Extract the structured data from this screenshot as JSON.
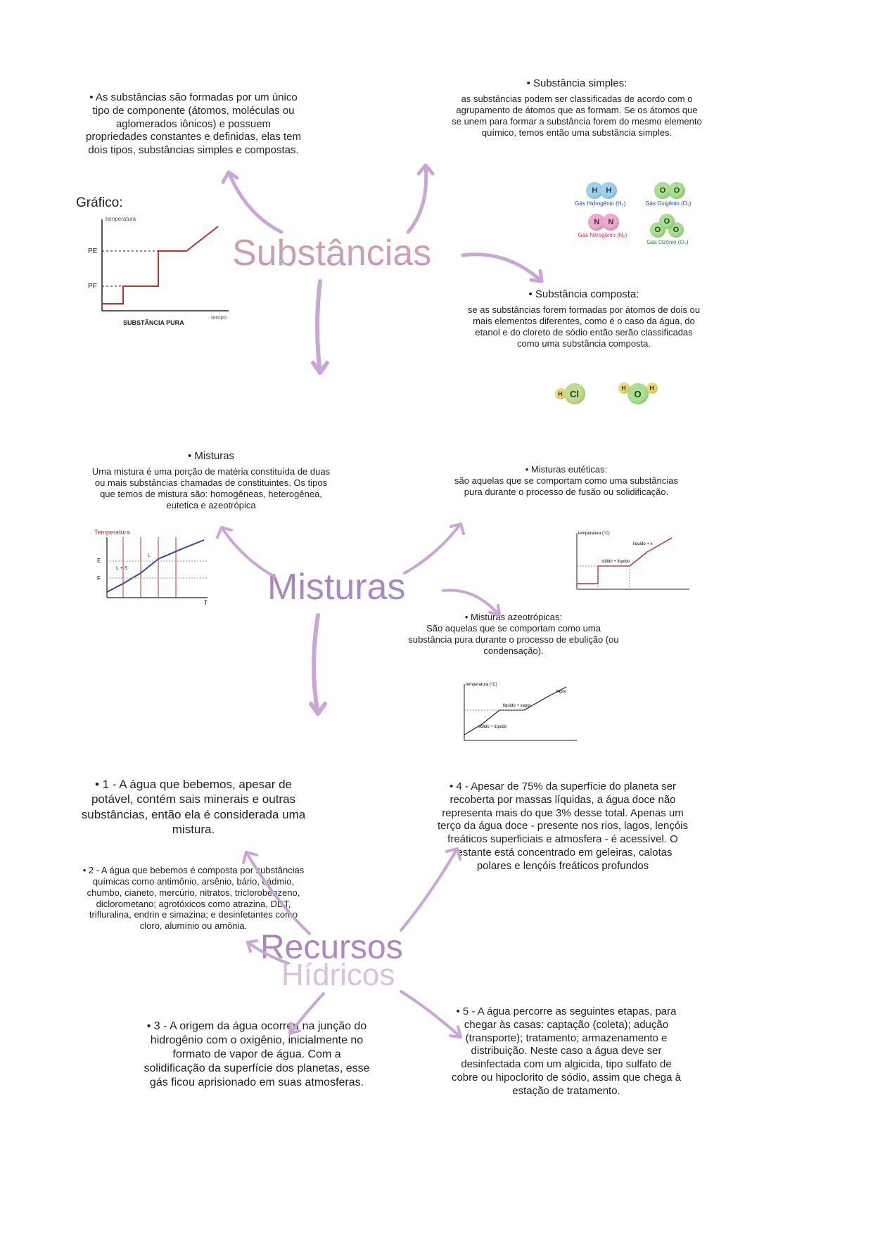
{
  "colors": {
    "arrow": "#c9a6d6",
    "chart_axes": "#222222",
    "chart_line_red": "#c23030",
    "chart_line_blue": "#2a4aa0",
    "chart_grid": "#b8b8b8",
    "atom_h": "#9ed3f0",
    "atom_o": "#a7e28f",
    "atom_n": "#f2a8cf",
    "atom_cl": "#bfde8e",
    "atom_h_yellow": "#f5df6e",
    "caption_blue": "#2244cc",
    "caption_red": "#cc3344",
    "caption_green": "#2a8a3a"
  },
  "substancias": {
    "heading": "Substâncias",
    "left": {
      "bullet": "• As substâncias são formadas por um único tipo de componente (átomos, moléculas ou aglomerados iônicos) e possuem propriedades constantes e definidas, elas tem dois tipos, substâncias simples e compostas.",
      "grafico_label": "Gráfico:",
      "chart": {
        "y_label": "temperatura",
        "x_label": "tempo",
        "pe_label": "PE",
        "pf_label": "PF",
        "caption": "SUBSTÂNCIA PURA"
      }
    },
    "simples": {
      "title": "• Substância simples:",
      "body": "as substâncias podem ser classificadas de acordo com o agrupamento de átomos que as formam. Se os átomos que se unem para formar a substância forem do mesmo elemento químico, temos então uma substância simples.",
      "atoms": [
        {
          "letters": [
            "H",
            "H"
          ],
          "color_key": "atom_h",
          "caption": "Gás Hidrogênio (H₂)",
          "cap_color": "caption_blue"
        },
        {
          "letters": [
            "O",
            "O"
          ],
          "color_key": "atom_o",
          "caption": "Gás Oxigênio (O₂)",
          "cap_color": "caption_blue"
        },
        {
          "letters": [
            "N",
            "N"
          ],
          "color_key": "atom_n",
          "caption": "Gás Nitrogênio (N₂)",
          "cap_color": "caption_red"
        },
        {
          "letters": [
            "O",
            "O",
            "O"
          ],
          "color_key": "atom_o",
          "caption": "Gás Ozônio (O₃)",
          "cap_color": "caption_green",
          "tri": true
        }
      ]
    },
    "composta": {
      "title": "• Substância composta:",
      "body": "se as substâncias forem formadas por átomos de dois ou mais elementos diferentes, como é o caso da água, do etanol e do cloreto de sódio então serão classificadas como uma substância composta.",
      "mol1": {
        "letters": [
          "H",
          "Cl"
        ],
        "colors": [
          "atom_h_yellow",
          "atom_cl"
        ]
      },
      "mol2": {
        "letters": [
          "H",
          "O",
          "H"
        ],
        "colors": [
          "atom_h_yellow",
          "atom_o",
          "atom_h_yellow"
        ]
      }
    }
  },
  "misturas": {
    "heading": "Misturas",
    "left": {
      "title": "• Misturas",
      "body": "Uma mistura é uma porção de matéria constituída de duas ou mais substâncias chamadas de constituintes. Os tipos que temos de mistura são: homogêneas, heterogênea, eutetica e azeotrópica",
      "chart_label": "Temperatura"
    },
    "euteticas": {
      "title": "• Misturas eutéticas:",
      "body": "são aquelas que se comportam como uma substâncias pura durante o processo de fusão ou solidificação."
    },
    "azeotropicas": {
      "title": "• Misturas azeotrópicas:",
      "body": "São aquelas que se comportam como uma substância pura durante o processo de ebulição (ou condensação)."
    }
  },
  "recursos": {
    "heading1": "Recursos",
    "heading2": "Hídricos",
    "items": [
      "• 1 -  A água que bebemos, apesar de potável, contém sais minerais e outras substâncias, então ela é considerada uma mistura.",
      "• 2 - A água que bebemos é composta por substâncias químicas como antimônio, arsênio, bário, cádmio, chumbo, cianeto, mercúrio, nitratos, triclorobenzeno, diclorometano; agrotóxicos como atrazina, DDT, trifluralina, endrin e simazina; e desinfetantes como cloro, alumínio ou amônia.",
      "• 3 - A origem da água ocorreu na junção do hidrogênio com o oxigênio, inicialmente no formato de vapor de água. Com a solidificação da superfície dos planetas, esse gás ficou aprisionado em suas atmosferas.",
      "• 4 - Apesar de 75% da superfície do planeta ser recoberta por massas líquidas, a água doce não representa mais do que 3% desse total. Apenas um terço da água doce - presente nos rios, lagos, lençóis freáticos superficiais e atmosfera - é acessível. O restante está concentrado em geleiras, calotas polares e lençóis freáticos profundos",
      "• 5 - A água percorre as seguintes etapas, para chegar às casas: captação (coleta); adução (transporte); tratamento; armazenamento e distribuição. Neste caso a água deve ser desinfectada com um algicida, tipo sulfato de cobre ou hipoclorito de sódio, assim que chega à estação de tratamento."
    ]
  }
}
